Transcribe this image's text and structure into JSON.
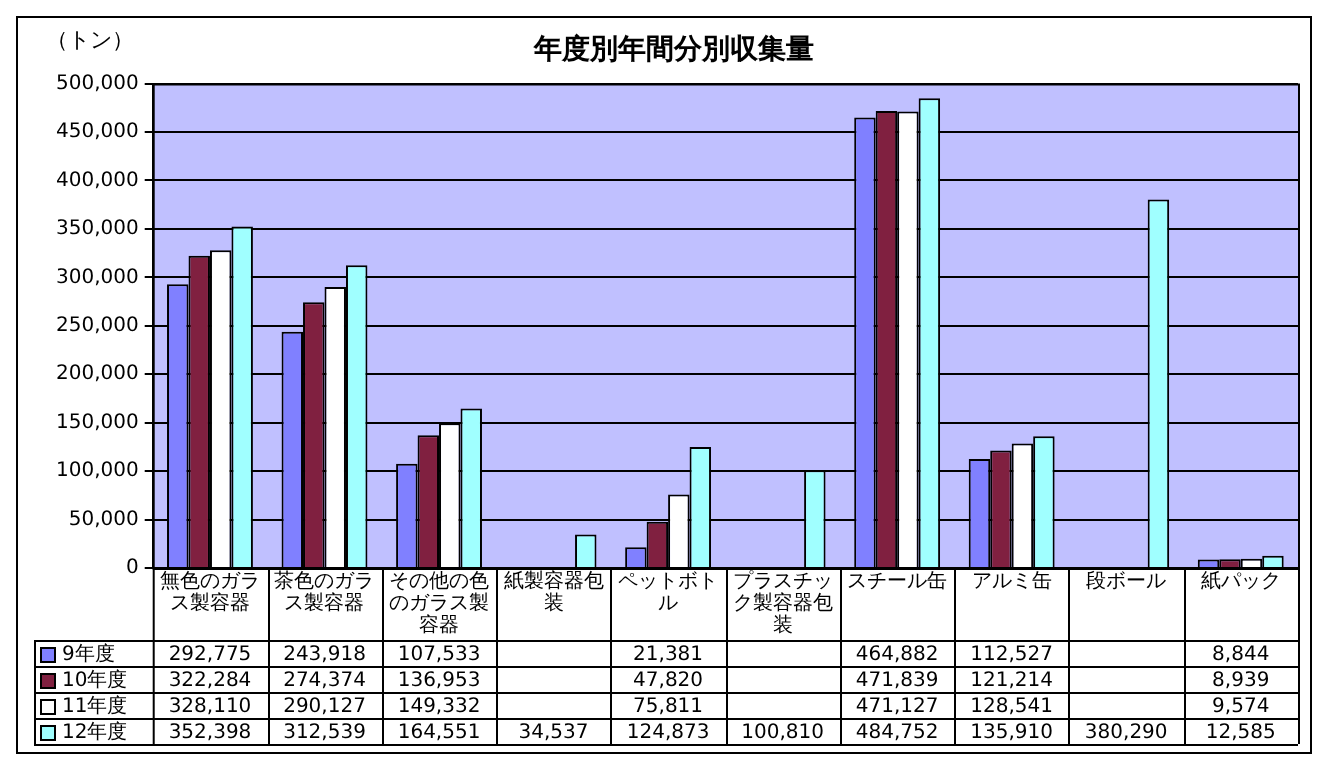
{
  "chart_data": {
    "type": "bar",
    "title": "年度別年間分別収集量",
    "ylabel": "（トン）",
    "categories": [
      "無色のガラス製容器",
      "茶色のガラス製容器",
      "その他の色のガラス製容器",
      "紙製容器包装",
      "ペットボトル",
      "プラスチック製容器包装",
      "スチール缶",
      "アルミ缶",
      "段ボール",
      "紙パック"
    ],
    "series": [
      {
        "name": "9年度",
        "color": "#8080ff",
        "values": [
          292775,
          243918,
          107533,
          null,
          21381,
          null,
          464882,
          112527,
          null,
          8844
        ],
        "value_labels": [
          "292,775",
          "243,918",
          "107,533",
          null,
          "21,381",
          null,
          "464,882",
          "112,527",
          null,
          "8,844"
        ]
      },
      {
        "name": "10年度",
        "color": "#802040",
        "values": [
          322284,
          274374,
          136953,
          null,
          47820,
          null,
          471839,
          121214,
          null,
          8939
        ],
        "value_labels": [
          "322,284",
          "274,374",
          "136,953",
          null,
          "47,820",
          null,
          "471,839",
          "121,214",
          null,
          "8,939"
        ]
      },
      {
        "name": "11年度",
        "color": "#ffffff",
        "values": [
          328110,
          290127,
          149332,
          null,
          75811,
          null,
          471127,
          128541,
          null,
          9574
        ],
        "value_labels": [
          "328,110",
          "290,127",
          "149,332",
          null,
          "75,811",
          null,
          "471,127",
          "128,541",
          null,
          "9,574"
        ]
      },
      {
        "name": "12年度",
        "color": "#a0ffff",
        "values": [
          352398,
          312539,
          164551,
          34537,
          124873,
          100810,
          484752,
          135910,
          380290,
          12585
        ],
        "value_labels": [
          "352,398",
          "312,539",
          "164,551",
          "34,537",
          "124,873",
          "100,810",
          "484,752",
          "135,910",
          "380,290",
          "12,585"
        ]
      }
    ],
    "ylim": [
      0,
      500000
    ],
    "yticks": [
      0,
      {
        "value": 50000,
        "label": "50,000"
      },
      {
        "value": 100000,
        "label": "100,000"
      },
      {
        "value": 150000,
        "label": "150,000"
      },
      {
        "value": 200000,
        "label": "200,000"
      },
      {
        "value": 250000,
        "label": "250,000"
      },
      {
        "value": 300000,
        "label": "300,000"
      },
      {
        "value": 350000,
        "label": "350,000"
      },
      {
        "value": 400000,
        "label": "400,000"
      },
      {
        "value": 450000,
        "label": "450,000"
      },
      {
        "value": 500000,
        "label": "500,000"
      }
    ],
    "grid": "y",
    "legend": "bottom"
  }
}
